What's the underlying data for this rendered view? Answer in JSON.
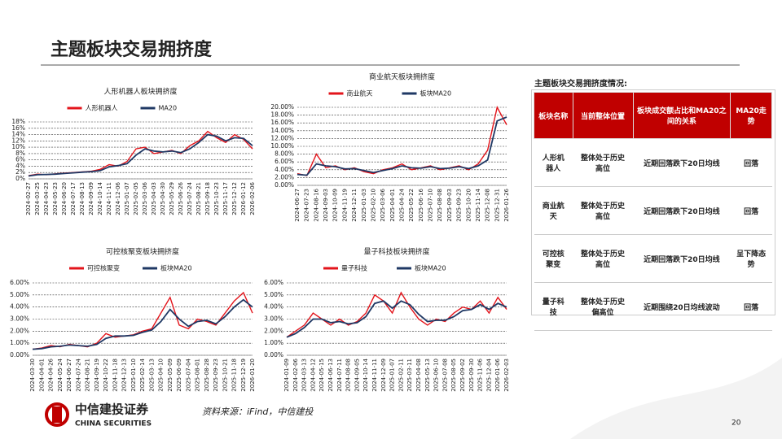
{
  "header": {
    "title": "主题板块交易拥挤度"
  },
  "chart_data": [
    {
      "type": "line",
      "title": "人形机器人板块拥挤度",
      "categories": [
        "2024-02-27",
        "2024-03-25",
        "2024-04-23",
        "2024-05-23",
        "2024-06-20",
        "2024-07-17",
        "2024-08-13",
        "2024-09-09",
        "2024-10-14",
        "2024-11-11",
        "2024-12-06",
        "2025-01-07",
        "2025-02-05",
        "2025-03-06",
        "2025-04-03",
        "2025-04-30",
        "2025-05-29",
        "2025-06-26",
        "2025-07-24",
        "2025-08-21",
        "2025-09-18",
        "2025-10-23",
        "2025-11-17",
        "2025-12-12",
        "2026-01-12",
        "2026-02-06"
      ],
      "series": [
        {
          "name": "人形机器人",
          "color": "#e3141b",
          "values": [
            1.0,
            1.5,
            1.3,
            1.6,
            1.8,
            2.0,
            2.2,
            2.4,
            3.0,
            4.5,
            4.0,
            5.5,
            9.5,
            10.0,
            8.0,
            8.5,
            9.0,
            8.0,
            10.5,
            12.0,
            15.0,
            13.0,
            11.5,
            14.0,
            12.5,
            9.5
          ]
        },
        {
          "name": "MA20",
          "color": "#1f3864",
          "values": [
            0.9,
            1.3,
            1.4,
            1.5,
            1.7,
            1.9,
            2.1,
            2.3,
            2.6,
            3.8,
            4.2,
            4.8,
            7.5,
            9.5,
            8.8,
            8.5,
            8.8,
            8.3,
            9.5,
            11.5,
            14.0,
            13.5,
            12.0,
            13.0,
            12.8,
            10.5
          ]
        }
      ],
      "ylim": [
        0,
        18
      ],
      "yticks": [
        {
          "value": 0,
          "label": "0%"
        },
        {
          "value": 2,
          "label": "2%"
        },
        {
          "value": 4,
          "label": "4%"
        },
        {
          "value": 6,
          "label": "6%"
        },
        {
          "value": 8,
          "label": "8%"
        },
        {
          "value": 10,
          "label": "10%"
        },
        {
          "value": 12,
          "label": "12%"
        },
        {
          "value": 14,
          "label": "14%"
        },
        {
          "value": 16,
          "label": "16%"
        },
        {
          "value": 18,
          "label": "18%"
        }
      ],
      "grid": true
    },
    {
      "type": "line",
      "title": "商业航天板块拥挤度",
      "categories": [
        "2024-06-27",
        "2024-07-23",
        "2024-08-16",
        "2024-09-03",
        "2024-10-09",
        "2024-11-19",
        "2024-12-11",
        "2025-01-03",
        "2025-02-10",
        "2025-03-06",
        "2025-04-01",
        "2025-04-24",
        "2025-05-22",
        "2025-06-16",
        "2025-07-10",
        "2025-08-08",
        "2025-09-03",
        "2025-09-23",
        "2025-10-20",
        "2025-11-14",
        "2025-12-08",
        "2025-12-31",
        "2026-01-26"
      ],
      "series": [
        {
          "name": "商业航天",
          "color": "#e3141b",
          "values": [
            3.0,
            2.5,
            8.0,
            4.5,
            5.0,
            4.0,
            4.5,
            3.5,
            3.0,
            4.0,
            4.5,
            5.5,
            4.0,
            4.5,
            5.0,
            4.0,
            4.5,
            5.0,
            4.0,
            5.5,
            9.0,
            20.0,
            15.5
          ]
        },
        {
          "name": "板块MA20",
          "color": "#1f3864",
          "values": [
            2.8,
            2.6,
            5.5,
            5.0,
            4.8,
            4.2,
            4.3,
            3.8,
            3.3,
            3.8,
            4.3,
            5.0,
            4.5,
            4.4,
            4.8,
            4.3,
            4.4,
            4.8,
            4.3,
            5.0,
            6.5,
            16.5,
            17.5
          ]
        }
      ],
      "ylim": [
        0,
        20
      ],
      "yticks": [
        {
          "value": 0,
          "label": "0.00%"
        },
        {
          "value": 2,
          "label": "2.00%"
        },
        {
          "value": 4,
          "label": "4.00%"
        },
        {
          "value": 6,
          "label": "6.00%"
        },
        {
          "value": 8,
          "label": "8.00%"
        },
        {
          "value": 10,
          "label": "10.00%"
        },
        {
          "value": 12,
          "label": "12.00%"
        },
        {
          "value": 14,
          "label": "14.00%"
        },
        {
          "value": 16,
          "label": "16.00%"
        },
        {
          "value": 18,
          "label": "18.00%"
        },
        {
          "value": 20,
          "label": "20.00%"
        }
      ],
      "grid": true
    },
    {
      "type": "line",
      "title": "可控核聚变板块拥挤度",
      "categories": [
        "2024-03-30",
        "2024-04-01",
        "2024-04-26",
        "2024-05-24",
        "2024-06-27",
        "2024-07-24",
        "2024-08-21",
        "2024-09-19",
        "2024-10-22",
        "2024-11-18",
        "2024-12-13",
        "2025-01-10",
        "2025-02-14",
        "2025-03-13",
        "2025-04-10",
        "2025-05-09",
        "2025-06-09",
        "2025-07-04",
        "2025-08-01",
        "2025-08-28",
        "2025-09-23",
        "2025-10-21",
        "2025-11-18",
        "2025-12-19",
        "2026-01-20"
      ],
      "series": [
        {
          "name": "可控核聚变",
          "color": "#e3141b",
          "values": [
            0.5,
            0.6,
            0.8,
            0.7,
            0.9,
            0.8,
            0.7,
            1.0,
            1.8,
            1.5,
            1.6,
            1.7,
            2.0,
            2.2,
            3.5,
            4.8,
            2.5,
            2.2,
            3.0,
            2.8,
            2.5,
            3.5,
            4.5,
            5.2,
            3.5
          ]
        },
        {
          "name": "板块MA20",
          "color": "#1f3864",
          "values": [
            0.5,
            0.55,
            0.7,
            0.75,
            0.85,
            0.8,
            0.75,
            0.9,
            1.4,
            1.6,
            1.6,
            1.65,
            1.9,
            2.1,
            2.8,
            3.8,
            3.0,
            2.4,
            2.8,
            2.9,
            2.6,
            3.2,
            4.0,
            4.6,
            4.0
          ]
        }
      ],
      "ylim": [
        0,
        6
      ],
      "yticks": [
        {
          "value": 0,
          "label": "0.00%"
        },
        {
          "value": 1,
          "label": "1.00%"
        },
        {
          "value": 2,
          "label": "2.00%"
        },
        {
          "value": 3,
          "label": "3.00%"
        },
        {
          "value": 4,
          "label": "4.00%"
        },
        {
          "value": 5,
          "label": "5.00%"
        },
        {
          "value": 6,
          "label": "6.00%"
        }
      ],
      "grid": true
    },
    {
      "type": "line",
      "title": "量子科技板块拥挤度",
      "categories": [
        "2024-01-09",
        "2024-02-06",
        "2024-03-13",
        "2024-04-12",
        "2024-05-15",
        "2024-06-13",
        "2024-07-11",
        "2024-08-08",
        "2024-09-05",
        "2024-10-14",
        "2024-11-11",
        "2024-12-09",
        "2025-01-07",
        "2025-02-11",
        "2025-03-11",
        "2025-04-08",
        "2025-05-13",
        "2025-06-10",
        "2025-07-08",
        "2025-08-05",
        "2025-09-02",
        "2025-09-30",
        "2025-11-06",
        "2025-12-04",
        "2026-01-06",
        "2026-02-03"
      ],
      "series": [
        {
          "name": "量子科技",
          "color": "#e3141b",
          "values": [
            1.5,
            2.0,
            2.5,
            3.5,
            3.0,
            2.5,
            3.0,
            2.5,
            2.8,
            3.5,
            5.0,
            4.5,
            3.5,
            5.2,
            4.0,
            3.0,
            2.5,
            3.0,
            2.8,
            3.5,
            4.0,
            3.8,
            4.5,
            3.5,
            4.8,
            3.8
          ]
        },
        {
          "name": "板块MA20",
          "color": "#1f3864",
          "values": [
            1.5,
            1.8,
            2.3,
            3.0,
            3.0,
            2.7,
            2.8,
            2.6,
            2.7,
            3.2,
            4.3,
            4.5,
            3.9,
            4.5,
            4.2,
            3.4,
            2.8,
            2.9,
            2.9,
            3.2,
            3.7,
            3.8,
            4.2,
            3.8,
            4.3,
            4.0
          ]
        }
      ],
      "ylim": [
        0,
        6
      ],
      "yticks": [
        {
          "value": 0,
          "label": "0.00%"
        },
        {
          "value": 1,
          "label": "1.00%"
        },
        {
          "value": 2,
          "label": "2.00%"
        },
        {
          "value": 3,
          "label": "3.00%"
        },
        {
          "value": 4,
          "label": "4.00%"
        },
        {
          "value": 5,
          "label": "5.00%"
        },
        {
          "value": 6,
          "label": "6.00%"
        }
      ],
      "grid": true
    }
  ],
  "table": {
    "title": "主题板块交易拥挤度情况:",
    "columns": [
      "板块名称",
      "当前整体位置",
      "板块成交额占比和MA20之间的关系",
      "MA20走势"
    ],
    "rows": [
      [
        "人形机器人",
        "整体处于历史高位",
        "近期回落跌下20日均线",
        "回落"
      ],
      [
        "商业航天",
        "整体处于历史高位",
        "近期回落跌下20日均线",
        "回落"
      ],
      [
        "可控核聚变",
        "整体处于历史高位",
        "近期回落跌下20日均线",
        "呈下降态势"
      ],
      [
        "量子科技",
        "整体处于历史偏高位",
        "近期围绕20日均线波动",
        "回落"
      ]
    ]
  },
  "footer": {
    "source": "资料来源：iFind，中信建投",
    "page": "20",
    "logo": "中信建投证券",
    "logo_en": "CHINA SECURITIES"
  }
}
